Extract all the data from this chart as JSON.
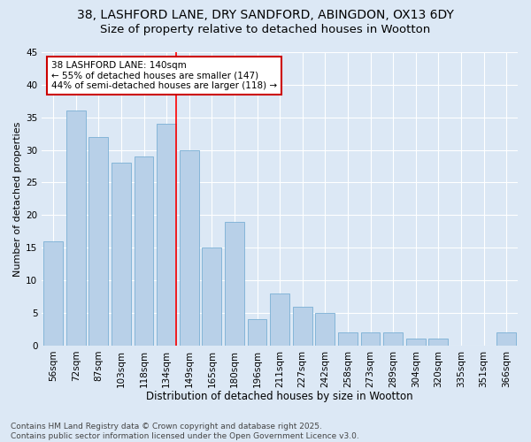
{
  "title1": "38, LASHFORD LANE, DRY SANDFORD, ABINGDON, OX13 6DY",
  "title2": "Size of property relative to detached houses in Wootton",
  "xlabel": "Distribution of detached houses by size in Wootton",
  "ylabel": "Number of detached properties",
  "categories": [
    "56sqm",
    "72sqm",
    "87sqm",
    "103sqm",
    "118sqm",
    "134sqm",
    "149sqm",
    "165sqm",
    "180sqm",
    "196sqm",
    "211sqm",
    "227sqm",
    "242sqm",
    "258sqm",
    "273sqm",
    "289sqm",
    "304sqm",
    "320sqm",
    "335sqm",
    "351sqm",
    "366sqm"
  ],
  "values": [
    16,
    36,
    32,
    28,
    29,
    34,
    30,
    15,
    19,
    4,
    8,
    6,
    5,
    2,
    2,
    2,
    1,
    1,
    0,
    0,
    2
  ],
  "bar_color": "#b8d0e8",
  "bar_edge_color": "#7aafd4",
  "background_color": "#dce8f5",
  "grid_color": "#ffffff",
  "redline_index": 5,
  "annotation_text": "38 LASHFORD LANE: 140sqm\n← 55% of detached houses are smaller (147)\n44% of semi-detached houses are larger (118) →",
  "annotation_box_color": "#ffffff",
  "annotation_box_edge": "#cc0000",
  "ylim": [
    0,
    45
  ],
  "yticks": [
    0,
    5,
    10,
    15,
    20,
    25,
    30,
    35,
    40,
    45
  ],
  "footer": "Contains HM Land Registry data © Crown copyright and database right 2025.\nContains public sector information licensed under the Open Government Licence v3.0.",
  "title1_fontsize": 10,
  "title2_fontsize": 9.5,
  "xlabel_fontsize": 8.5,
  "ylabel_fontsize": 8,
  "tick_fontsize": 7.5,
  "annotation_fontsize": 7.5,
  "footer_fontsize": 6.5
}
